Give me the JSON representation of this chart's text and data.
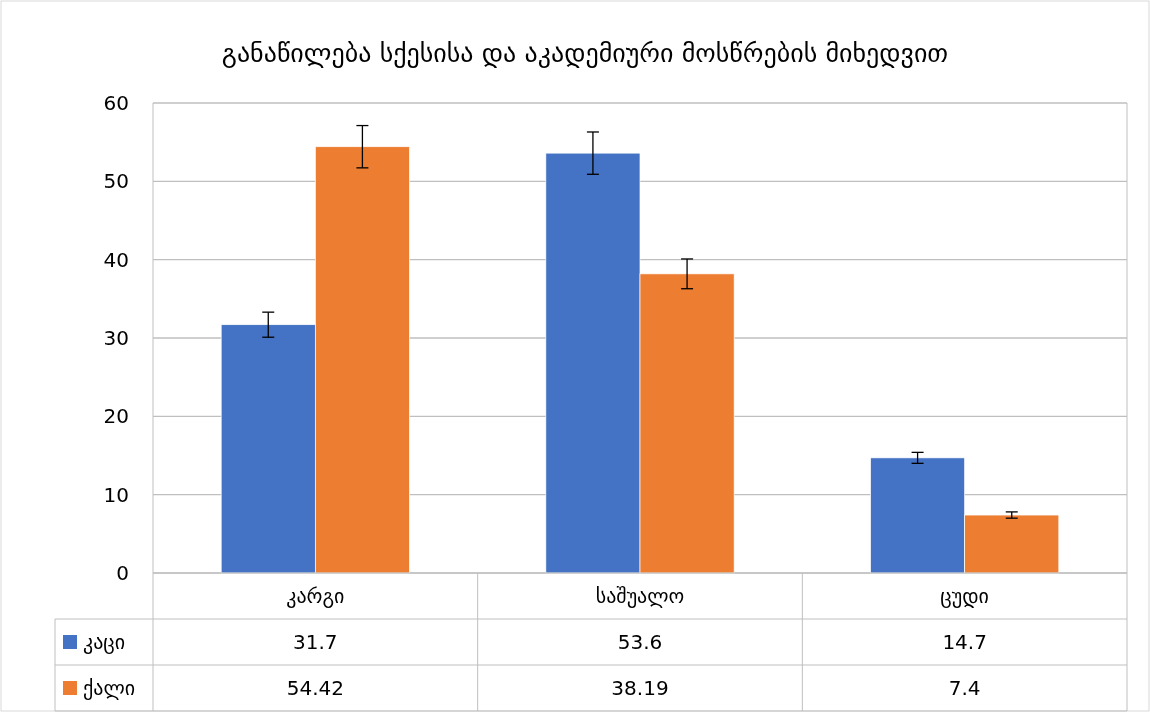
{
  "chart_data": {
    "type": "bar",
    "title": "განაწილება სქესისა და აკადემიური მოსწრების მიხედვით",
    "categories": [
      "კარგი",
      "საშუალო",
      "ცუდი"
    ],
    "series": [
      {
        "name": "კაცი",
        "color": "#4472c4",
        "values": [
          31.7,
          53.6,
          14.7
        ],
        "errors": [
          1.6,
          2.7,
          0.7
        ]
      },
      {
        "name": "ქალი",
        "color": "#ed7d31",
        "values": [
          54.42,
          38.19,
          7.4
        ],
        "errors": [
          2.7,
          1.9,
          0.4
        ]
      }
    ],
    "ylim": [
      0,
      60
    ],
    "yticks": [
      0,
      10,
      20,
      30,
      40,
      50,
      60
    ],
    "grid": "y",
    "legend": "bottom",
    "data_labels": true
  }
}
